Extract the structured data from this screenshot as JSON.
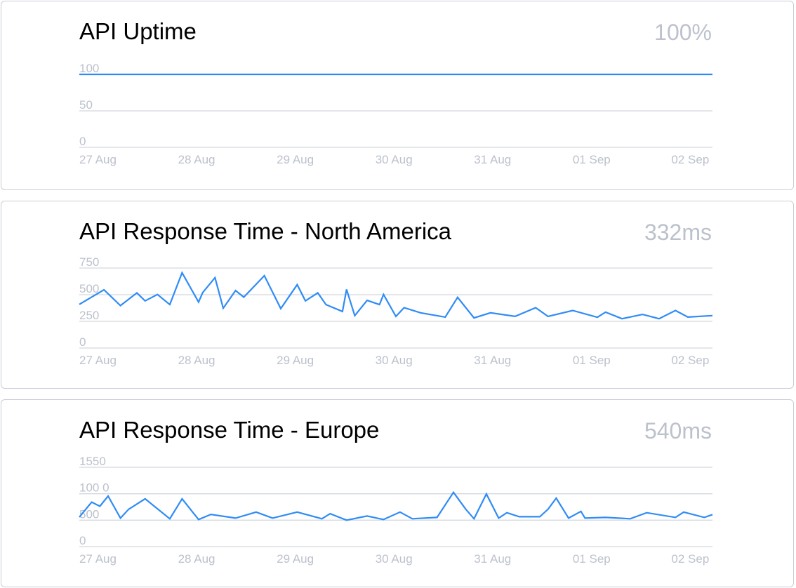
{
  "cards": [
    {
      "title": "API Uptime",
      "value": "100%"
    },
    {
      "title": "API Response Time - North America",
      "value": "332ms"
    },
    {
      "title": "API Response Time - Europe",
      "value": "540ms"
    }
  ],
  "chart_data": [
    {
      "type": "line",
      "title": "API Uptime",
      "line_color": "#2f8cf6",
      "grid": true,
      "xlim": [
        "27 Aug 00:00",
        "02 Sep 10:00"
      ],
      "xticks": [
        "27 Aug",
        "28 Aug",
        "29 Aug",
        "30 Aug",
        "31 Aug",
        "01 Sep",
        "02 Sep"
      ],
      "ylim": [
        0,
        100
      ],
      "yticks": [
        "0",
        "50",
        "100"
      ],
      "x": [
        "27 Aug 00:00",
        "02 Sep 10:00"
      ],
      "values": [
        100,
        100
      ]
    },
    {
      "type": "line",
      "title": "API Response Time - North America",
      "line_color": "#2f8cf6",
      "grid": true,
      "xlim": [
        "27 Aug 00:00",
        "02 Sep 10:00"
      ],
      "xticks": [
        "27 Aug",
        "28 Aug",
        "29 Aug",
        "30 Aug",
        "31 Aug",
        "01 Sep",
        "02 Sep"
      ],
      "ylim": [
        0,
        750
      ],
      "yticks": [
        "0",
        "250",
        "500",
        "750"
      ],
      "x": [
        "27 Aug 00:00",
        "27 Aug 06:00",
        "27 Aug 10:00",
        "27 Aug 14:00",
        "27 Aug 16:00",
        "27 Aug 19:00",
        "27 Aug 22:00",
        "28 Aug 01:00",
        "28 Aug 05:00",
        "28 Aug 06:00",
        "28 Aug 09:00",
        "28 Aug 11:00",
        "28 Aug 14:00",
        "28 Aug 16:00",
        "28 Aug 21:00",
        "29 Aug 01:00",
        "29 Aug 05:00",
        "29 Aug 07:00",
        "29 Aug 10:00",
        "29 Aug 12:00",
        "29 Aug 16:00",
        "29 Aug 17:00",
        "29 Aug 19:00",
        "29 Aug 22:00",
        "30 Aug 01:00",
        "30 Aug 02:00",
        "30 Aug 05:00",
        "30 Aug 07:00",
        "30 Aug 11:00",
        "30 Aug 17:00",
        "30 Aug 20:00",
        "31 Aug 00:00",
        "31 Aug 04:00",
        "31 Aug 10:00",
        "31 Aug 15:00",
        "31 Aug 18:00",
        "01 Sep 00:00",
        "01 Sep 06:00",
        "01 Sep 08:00",
        "01 Sep 12:00",
        "01 Sep 17:00",
        "01 Sep 21:00",
        "02 Sep 01:00",
        "02 Sep 04:00",
        "02 Sep 10:00"
      ],
      "values": [
        409,
        546,
        398,
        517,
        442,
        502,
        407,
        706,
        431,
        519,
        660,
        374,
        539,
        477,
        678,
        370,
        594,
        442,
        517,
        407,
        343,
        550,
        304,
        447,
        407,
        502,
        297,
        378,
        330,
        290,
        475,
        282,
        330,
        297,
        378,
        297,
        352,
        288,
        337,
        275,
        315,
        275,
        352,
        290,
        304
      ]
    },
    {
      "type": "line",
      "title": "API Response Time - Europe",
      "line_color": "#2f8cf6",
      "grid": true,
      "xlim": [
        "27 Aug 00:00",
        "02 Sep 10:00"
      ],
      "xticks": [
        "27 Aug",
        "28 Aug",
        "29 Aug",
        "30 Aug",
        "31 Aug",
        "01 Sep",
        "02 Sep"
      ],
      "ylim": [
        0,
        1550
      ],
      "yticks": [
        "0",
        "500",
        "100 0",
        "1550"
      ],
      "x": [
        "27 Aug 00:00",
        "27 Aug 03:00",
        "27 Aug 05:00",
        "27 Aug 07:00",
        "27 Aug 10:00",
        "27 Aug 12:00",
        "27 Aug 16:00",
        "27 Aug 22:00",
        "28 Aug 01:00",
        "28 Aug 05:00",
        "28 Aug 08:00",
        "28 Aug 14:00",
        "28 Aug 19:00",
        "28 Aug 23:00",
        "29 Aug 05:00",
        "29 Aug 11:00",
        "29 Aug 13:00",
        "29 Aug 17:00",
        "29 Aug 22:00",
        "30 Aug 02:00",
        "30 Aug 06:00",
        "30 Aug 09:00",
        "30 Aug 15:00",
        "30 Aug 19:00",
        "30 Aug 22:00",
        "31 Aug 00:00",
        "31 Aug 03:00",
        "31 Aug 06:00",
        "31 Aug 08:00",
        "31 Aug 11:00",
        "31 Aug 16:00",
        "31 Aug 18:00",
        "31 Aug 20:00",
        "31 Aug 23:00",
        "01 Sep 02:00",
        "01 Sep 03:00",
        "01 Sep 08:00",
        "01 Sep 14:00",
        "01 Sep 18:00",
        "02 Sep 01:00",
        "02 Sep 03:00",
        "02 Sep 08:00",
        "02 Sep 10:00"
      ],
      "values": [
        576,
        870,
        789,
        988,
        557,
        730,
        934,
        544,
        934,
        530,
        630,
        557,
        675,
        557,
        675,
        544,
        644,
        517,
        598,
        530,
        675,
        544,
        571,
        1060,
        730,
        544,
        1029,
        557,
        662,
        585,
        585,
        730,
        947,
        557,
        689,
        557,
        571,
        544,
        662,
        571,
        675,
        571,
        625
      ]
    }
  ]
}
